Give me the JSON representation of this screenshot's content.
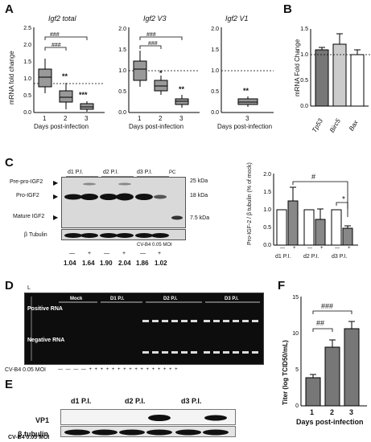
{
  "panels": {
    "a": "A",
    "b": "B",
    "c": "C",
    "d": "D",
    "e": "E",
    "f": "F"
  },
  "panel_a": {
    "ylabel": "mRNA fold change",
    "xlabel": "Days post-infection",
    "subplots": [
      {
        "title": "Igf2 total",
        "days": [
          "1",
          "2",
          "3"
        ],
        "stars": [
          "",
          "**",
          "***"
        ],
        "brackets": [
          "###",
          "###"
        ]
      },
      {
        "title": "Igf2 V3",
        "days": [
          "1",
          "2",
          "3"
        ],
        "stars": [
          "",
          "*",
          "**"
        ],
        "brackets": [
          "###",
          "###"
        ]
      },
      {
        "title": "Igf2 V1",
        "days": [
          "3"
        ],
        "stars": [
          "**"
        ],
        "brackets": []
      }
    ]
  },
  "panel_b": {
    "ylabel": "mRNA Fold Change",
    "genes": [
      "Tp53",
      "Birc5",
      "Bax"
    ]
  },
  "panel_c": {
    "timepoints": [
      "d1 P.I.",
      "d2 P.I.",
      "d3 P.I."
    ],
    "pc_label": "PC",
    "left_labels": [
      "Pre-pro-IGF2",
      "Pro-IGF2",
      "Mature IGF2",
      "β Tubulin"
    ],
    "markers": [
      "25 kDa",
      "18 kDa",
      "7.5 kDa"
    ],
    "infection_label": "CV-B4 0.05 MOI",
    "signs": [
      "—",
      "+",
      "—",
      "+",
      "—",
      "+"
    ],
    "ratios": [
      "1.04",
      "1.64",
      "1.90",
      "2.04",
      "1.86",
      "1.02"
    ],
    "bar_ylabel": "Pro-IGF-2 / β tubulin (% of mock)",
    "bar_xlabels": [
      "d1 P.I.",
      "d2 P.I.",
      "d3 P.I."
    ],
    "bar_signs": [
      "—",
      "+",
      "—",
      "+",
      "—",
      "+"
    ],
    "sig": [
      "#",
      "*"
    ]
  },
  "panel_d": {
    "ladder": "L",
    "groups": [
      "Mock",
      "D1 P.I.",
      "D2 P.I.",
      "D3 P.I."
    ],
    "rows": [
      "Positive RNA",
      "Negative RNA"
    ],
    "infection_label": "CV-B4 0.05 MOI",
    "signs": [
      "—",
      "—",
      "—",
      "—",
      "+",
      "+",
      "+",
      "+",
      "+",
      "+",
      "+",
      "+",
      "+",
      "+",
      "+",
      "+",
      "+",
      "+",
      "+",
      "+"
    ]
  },
  "panel_e": {
    "timepoints": [
      "d1 P.I.",
      "d2 P.I.",
      "d3 P.I."
    ],
    "rows": [
      "VP1",
      "β tubulin"
    ],
    "infection_label": "CV-B4 0.05 MOI",
    "signs": [
      "—",
      "+",
      "—",
      "+",
      "—",
      "+"
    ]
  },
  "panel_f": {
    "ylabel": "Titer (log TCID50/mL)",
    "xlabel": "Days post-infection",
    "sig": [
      "##",
      "###"
    ]
  },
  "chart_data": [
    {
      "type": "bar",
      "title": "Igf2 total",
      "xlabel": "Days post-infection",
      "ylabel": "mRNA fold change",
      "categories": [
        "1",
        "2",
        "3"
      ],
      "values": [
        1.15,
        0.42,
        0.15
      ],
      "ylim": [
        0,
        2.5
      ]
    },
    {
      "type": "bar",
      "title": "Igf2 V3",
      "xlabel": "Days post-infection",
      "ylabel": "mRNA fold change",
      "categories": [
        "1",
        "2",
        "3"
      ],
      "values": [
        1.05,
        0.68,
        0.28
      ],
      "ylim": [
        0,
        2.0
      ]
    },
    {
      "type": "bar",
      "title": "Igf2 V1",
      "xlabel": "Days post-infection",
      "ylabel": "mRNA fold change",
      "categories": [
        "3"
      ],
      "values": [
        0.25
      ],
      "ylim": [
        0,
        2.0
      ]
    },
    {
      "type": "bar",
      "ylabel": "mRNA Fold Change",
      "categories": [
        "Tp53",
        "Birc5",
        "Bax"
      ],
      "values": [
        1.1,
        1.2,
        1.0
      ],
      "errors": [
        0.05,
        0.2,
        0.1
      ],
      "colors": [
        "#777777",
        "#cccccc",
        "#ffffff"
      ],
      "ylim": [
        0,
        1.5
      ]
    },
    {
      "type": "bar",
      "ylabel": "Pro-IGF-2 / β tubulin (% of mock)",
      "categories": [
        "d1 P.I. —",
        "d1 P.I. +",
        "d2 P.I. —",
        "d2 P.I. +",
        "d3 P.I. —",
        "d3 P.I. +"
      ],
      "values": [
        1.0,
        1.25,
        1.0,
        0.72,
        1.0,
        0.48
      ],
      "errors": [
        0,
        0.4,
        0,
        0.3,
        0,
        0.08
      ],
      "ylim": [
        0,
        2.0
      ]
    },
    {
      "type": "bar",
      "xlabel": "Days post-infection",
      "ylabel": "Titer (log TCID50/mL)",
      "categories": [
        "1",
        "2",
        "3"
      ],
      "values": [
        3.9,
        8.1,
        10.7
      ],
      "errors": [
        0.4,
        1.0,
        1.0
      ],
      "ylim": [
        0,
        15
      ]
    }
  ]
}
